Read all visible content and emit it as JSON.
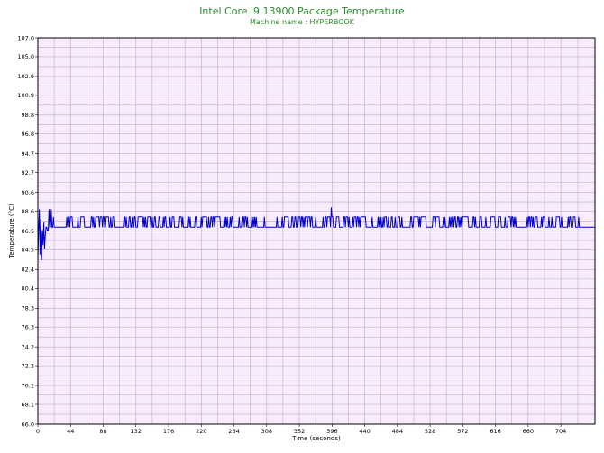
{
  "chart_data": {
    "type": "line",
    "title": "Intel Core i9 13900 Package Temperature",
    "subtitle": "Machine name : HYPERBOOK",
    "xlabel": "Time (seconds)",
    "ylabel": "Temperature (°C)",
    "xlim": [
      0,
      750
    ],
    "ylim": [
      66.0,
      107.0
    ],
    "x_ticks": [
      "0",
      "44",
      "88",
      "132",
      "176",
      "220",
      "264",
      "308",
      "352",
      "396",
      "440",
      "484",
      "528",
      "572",
      "616",
      "660",
      "704"
    ],
    "y_ticks": [
      "66.0",
      "68.1",
      "70.1",
      "72.2",
      "74.2",
      "76.3",
      "78.3",
      "80.4",
      "82.4",
      "84.5",
      "86.5",
      "88.6",
      "90.6",
      "92.7",
      "94.7",
      "96.8",
      "98.8",
      "100.9",
      "102.9",
      "105.0",
      "107.0"
    ],
    "grid": true,
    "colors": {
      "line": "#0000cc",
      "plot_bg": "#f7ecfb",
      "grid": "#c8a8c8",
      "title": "#2e8b2e"
    },
    "series": [
      {
        "name": "",
        "sampling_interval": 1,
        "summary": {
          "min": 83.4,
          "max": 89.0,
          "steady_low": 86.9,
          "steady_high": 88.0
        },
        "points": [
          [
            0,
            83.6
          ],
          [
            1,
            86.5
          ],
          [
            2,
            88.8
          ],
          [
            3,
            84.0
          ],
          [
            4,
            87.8
          ],
          [
            5,
            83.4
          ],
          [
            6,
            86.6
          ],
          [
            7,
            85.0
          ],
          [
            8,
            87.4
          ],
          [
            9,
            84.6
          ],
          [
            10,
            86.0
          ],
          [
            11,
            86.9
          ],
          [
            12,
            86.9
          ],
          [
            13,
            86.5
          ],
          [
            14,
            86.5
          ],
          [
            15,
            88.8
          ],
          [
            16,
            86.9
          ],
          [
            17,
            86.9
          ],
          [
            18,
            88.8
          ],
          [
            19,
            86.9
          ],
          [
            20,
            86.9
          ],
          [
            21,
            88.0
          ],
          [
            22,
            86.9
          ],
          [
            30,
            86.9
          ],
          [
            38,
            86.9
          ],
          [
            39,
            88.0
          ],
          [
            40,
            86.9
          ]
        ]
      }
    ]
  }
}
